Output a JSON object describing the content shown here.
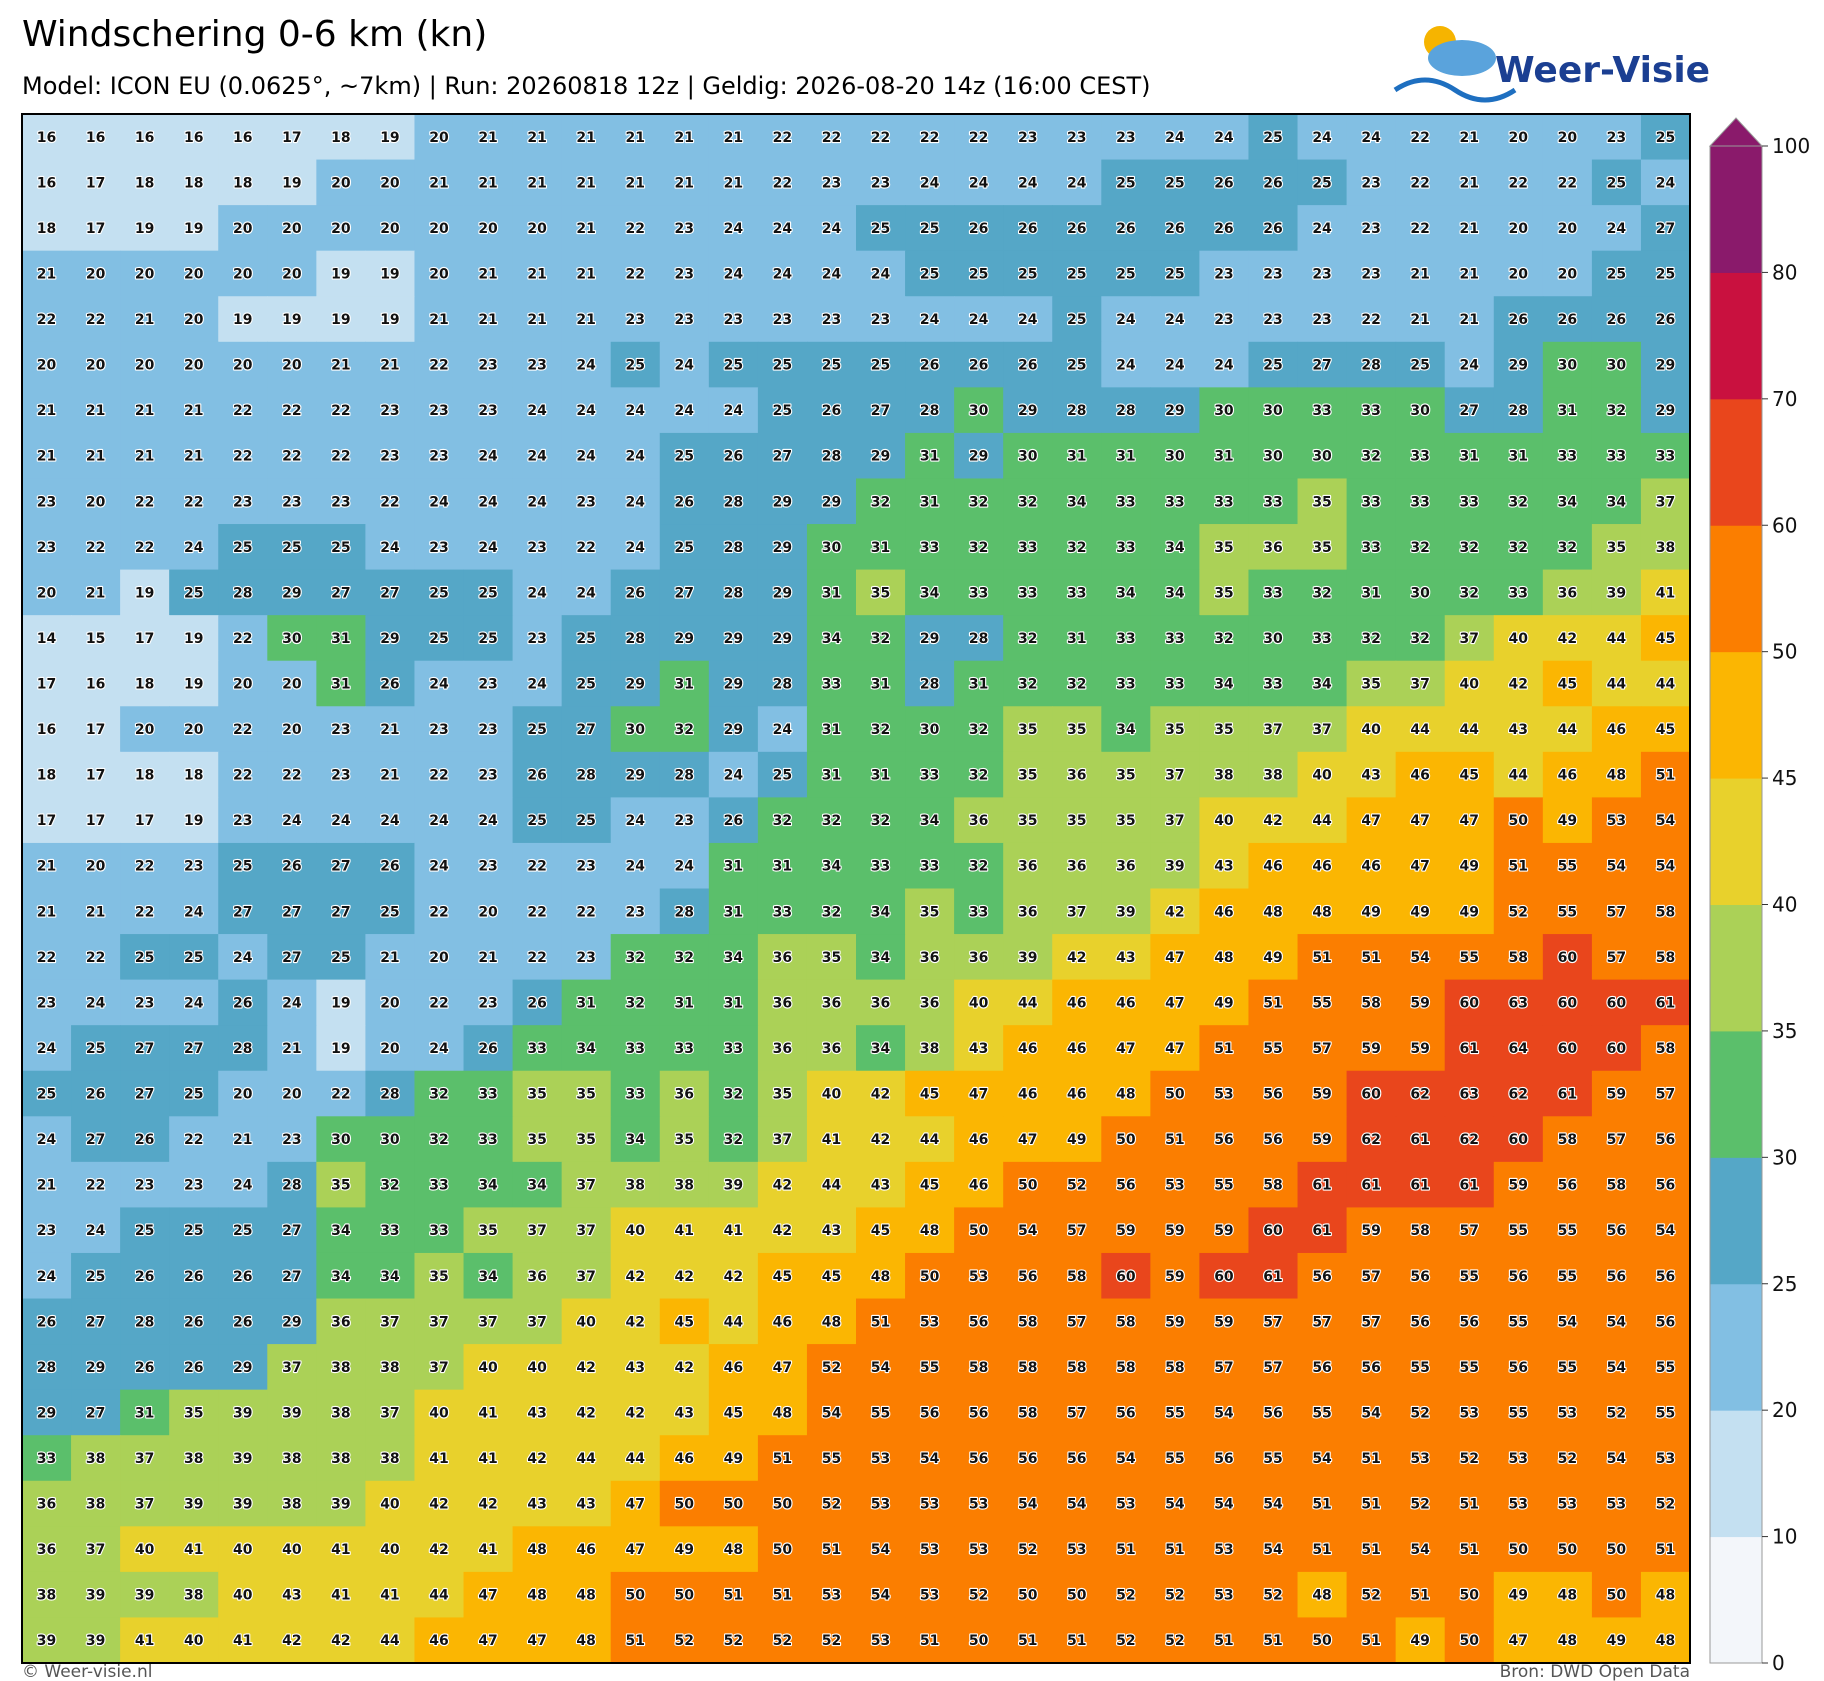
{
  "header": {
    "title": "Windschering 0-6 km (kn)",
    "subtitle": "Model: ICON EU (0.0625°, ~7km)  |  Run: 20260818 12z  |  Geldig: 2026-08-20 14z (16:00 CEST)",
    "logo": "Weer-Visie"
  },
  "footer": {
    "left": "© Weer-visie.nl",
    "right": "Bron: DWD Open Data"
  },
  "colorbar": {
    "bounds": [
      0,
      10,
      20,
      25,
      30,
      35,
      40,
      45,
      50,
      60,
      70,
      80,
      100
    ],
    "colors": [
      "#f3f6fa",
      "#c4e0f1",
      "#82bfe3",
      "#55a7c7",
      "#5bbf6b",
      "#abd157",
      "#e8d12c",
      "#fbb602",
      "#fb7e00",
      "#e9461c",
      "#c9113f",
      "#8a1a6b"
    ]
  },
  "grid": {
    "rows": [
      [
        16,
        16,
        16,
        16,
        16,
        17,
        18,
        19,
        20,
        21,
        21,
        21,
        21,
        21,
        21,
        22,
        22,
        22,
        22,
        22,
        23,
        23,
        23,
        24,
        24,
        25,
        24,
        24,
        22,
        21,
        20,
        20,
        23,
        25
      ],
      [
        16,
        17,
        18,
        18,
        18,
        19,
        20,
        20,
        21,
        21,
        21,
        21,
        21,
        21,
        21,
        22,
        23,
        23,
        24,
        24,
        24,
        24,
        25,
        25,
        26,
        26,
        25,
        23,
        22,
        21,
        22,
        22,
        25,
        24
      ],
      [
        18,
        17,
        19,
        19,
        20,
        20,
        20,
        20,
        20,
        20,
        20,
        21,
        22,
        23,
        24,
        24,
        24,
        25,
        25,
        26,
        26,
        26,
        26,
        26,
        26,
        26,
        24,
        23,
        22,
        21,
        20,
        20,
        24,
        27
      ],
      [
        21,
        20,
        20,
        20,
        20,
        20,
        19,
        19,
        20,
        21,
        21,
        21,
        22,
        23,
        24,
        24,
        24,
        24,
        25,
        25,
        25,
        25,
        25,
        25,
        23,
        23,
        23,
        23,
        21,
        21,
        20,
        20,
        25,
        25
      ],
      [
        22,
        22,
        21,
        20,
        19,
        19,
        19,
        19,
        21,
        21,
        21,
        21,
        23,
        23,
        23,
        23,
        23,
        23,
        24,
        24,
        24,
        25,
        24,
        24,
        23,
        23,
        23,
        22,
        21,
        21,
        26,
        26,
        26,
        26
      ],
      [
        20,
        20,
        20,
        20,
        20,
        20,
        21,
        21,
        22,
        23,
        23,
        24,
        25,
        24,
        25,
        25,
        25,
        25,
        26,
        26,
        26,
        25,
        24,
        24,
        24,
        25,
        27,
        28,
        25,
        24,
        29,
        30,
        30,
        29
      ],
      [
        21,
        21,
        21,
        21,
        22,
        22,
        22,
        23,
        23,
        23,
        24,
        24,
        24,
        24,
        24,
        25,
        26,
        27,
        28,
        30,
        29,
        28,
        28,
        29,
        30,
        30,
        33,
        33,
        30,
        27,
        28,
        31,
        32,
        29
      ],
      [
        21,
        21,
        21,
        21,
        22,
        22,
        22,
        23,
        23,
        24,
        24,
        24,
        24,
        25,
        26,
        27,
        28,
        29,
        31,
        29,
        30,
        31,
        31,
        30,
        31,
        30,
        30,
        32,
        33,
        31,
        31,
        33,
        33,
        33
      ],
      [
        23,
        20,
        22,
        22,
        23,
        23,
        23,
        22,
        24,
        24,
        24,
        23,
        24,
        26,
        28,
        29,
        29,
        32,
        31,
        32,
        32,
        34,
        33,
        33,
        33,
        33,
        35,
        33,
        33,
        33,
        32,
        34,
        34,
        37
      ],
      [
        23,
        22,
        22,
        24,
        25,
        25,
        25,
        24,
        23,
        24,
        23,
        22,
        24,
        25,
        28,
        29,
        30,
        31,
        33,
        32,
        33,
        32,
        33,
        34,
        35,
        36,
        35,
        33,
        32,
        32,
        32,
        32,
        35,
        38
      ],
      [
        20,
        21,
        19,
        25,
        28,
        29,
        27,
        27,
        25,
        25,
        24,
        24,
        26,
        27,
        28,
        29,
        31,
        35,
        34,
        33,
        33,
        33,
        34,
        34,
        35,
        33,
        32,
        31,
        30,
        32,
        33,
        36,
        39,
        41
      ],
      [
        14,
        15,
        17,
        19,
        22,
        30,
        31,
        29,
        25,
        25,
        23,
        25,
        28,
        29,
        29,
        29,
        34,
        32,
        29,
        28,
        32,
        31,
        33,
        33,
        32,
        30,
        33,
        32,
        32,
        37,
        40,
        42,
        44,
        45
      ],
      [
        17,
        16,
        18,
        19,
        20,
        20,
        31,
        26,
        24,
        23,
        24,
        25,
        29,
        31,
        29,
        28,
        33,
        31,
        28,
        31,
        32,
        32,
        33,
        33,
        34,
        33,
        34,
        35,
        37,
        40,
        42,
        45,
        44,
        44
      ],
      [
        16,
        17,
        20,
        20,
        22,
        20,
        23,
        21,
        23,
        23,
        25,
        27,
        30,
        32,
        29,
        24,
        31,
        32,
        30,
        32,
        35,
        35,
        34,
        35,
        35,
        37,
        37,
        40,
        44,
        44,
        43,
        44,
        46,
        45
      ],
      [
        18,
        17,
        18,
        18,
        22,
        22,
        23,
        21,
        22,
        23,
        26,
        28,
        29,
        28,
        24,
        25,
        31,
        31,
        33,
        32,
        35,
        36,
        35,
        37,
        38,
        38,
        40,
        43,
        46,
        45,
        44,
        46,
        48,
        51
      ],
      [
        17,
        17,
        17,
        19,
        23,
        24,
        24,
        24,
        24,
        24,
        25,
        25,
        24,
        23,
        26,
        32,
        32,
        32,
        34,
        36,
        35,
        35,
        35,
        37,
        40,
        42,
        44,
        47,
        47,
        47,
        50,
        49,
        53,
        54
      ],
      [
        21,
        20,
        22,
        23,
        25,
        26,
        27,
        26,
        24,
        23,
        22,
        23,
        24,
        24,
        31,
        31,
        34,
        33,
        33,
        32,
        36,
        36,
        36,
        39,
        43,
        46,
        46,
        46,
        47,
        49,
        51,
        55,
        54,
        54
      ],
      [
        21,
        21,
        22,
        24,
        27,
        27,
        27,
        25,
        22,
        20,
        22,
        22,
        23,
        28,
        31,
        33,
        32,
        34,
        35,
        33,
        36,
        37,
        39,
        42,
        46,
        48,
        48,
        49,
        49,
        49,
        52,
        55,
        57,
        58
      ],
      [
        22,
        22,
        25,
        25,
        24,
        27,
        25,
        21,
        20,
        21,
        22,
        23,
        32,
        32,
        34,
        36,
        35,
        34,
        36,
        36,
        39,
        42,
        43,
        47,
        48,
        49,
        51,
        51,
        54,
        55,
        58,
        60,
        57,
        58
      ],
      [
        23,
        24,
        23,
        24,
        26,
        24,
        19,
        20,
        22,
        23,
        26,
        31,
        32,
        31,
        31,
        36,
        36,
        36,
        36,
        40,
        44,
        46,
        46,
        47,
        49,
        51,
        55,
        58,
        59,
        60,
        63,
        60,
        60,
        61
      ],
      [
        24,
        25,
        27,
        27,
        28,
        21,
        19,
        20,
        24,
        26,
        33,
        34,
        33,
        33,
        33,
        36,
        36,
        34,
        38,
        43,
        46,
        46,
        47,
        47,
        51,
        55,
        57,
        59,
        59,
        61,
        64,
        60,
        60,
        58
      ],
      [
        25,
        26,
        27,
        25,
        20,
        20,
        22,
        28,
        32,
        33,
        35,
        35,
        33,
        36,
        32,
        35,
        40,
        42,
        45,
        47,
        46,
        46,
        48,
        50,
        53,
        56,
        59,
        60,
        62,
        63,
        62,
        61,
        59,
        57
      ],
      [
        24,
        27,
        26,
        22,
        21,
        23,
        30,
        30,
        32,
        33,
        35,
        35,
        34,
        35,
        32,
        37,
        41,
        42,
        44,
        46,
        47,
        49,
        50,
        51,
        56,
        56,
        59,
        62,
        61,
        62,
        60,
        58,
        57,
        56
      ],
      [
        21,
        22,
        23,
        23,
        24,
        28,
        35,
        32,
        33,
        34,
        34,
        37,
        38,
        38,
        39,
        42,
        44,
        43,
        45,
        46,
        50,
        52,
        56,
        53,
        55,
        58,
        61,
        61,
        61,
        61,
        59,
        56,
        58,
        56
      ],
      [
        23,
        24,
        25,
        25,
        25,
        27,
        34,
        33,
        33,
        35,
        37,
        37,
        40,
        41,
        41,
        42,
        43,
        45,
        48,
        50,
        54,
        57,
        59,
        59,
        59,
        60,
        61,
        59,
        58,
        57,
        55,
        55,
        56,
        54
      ],
      [
        24,
        25,
        26,
        26,
        26,
        27,
        34,
        34,
        35,
        34,
        36,
        37,
        42,
        42,
        42,
        45,
        45,
        48,
        50,
        53,
        56,
        58,
        60,
        59,
        60,
        61,
        56,
        57,
        56,
        55,
        56,
        55,
        56,
        56
      ],
      [
        26,
        27,
        28,
        26,
        26,
        29,
        36,
        37,
        37,
        37,
        37,
        40,
        42,
        45,
        44,
        46,
        48,
        51,
        53,
        56,
        58,
        57,
        58,
        59,
        59,
        57,
        57,
        57,
        56,
        56,
        55,
        54,
        54,
        56
      ],
      [
        28,
        29,
        26,
        26,
        29,
        37,
        38,
        38,
        37,
        40,
        40,
        42,
        43,
        42,
        46,
        47,
        52,
        54,
        55,
        58,
        58,
        58,
        58,
        58,
        57,
        57,
        56,
        56,
        55,
        55,
        56,
        55,
        54,
        55
      ],
      [
        29,
        27,
        31,
        35,
        39,
        39,
        38,
        37,
        40,
        41,
        43,
        42,
        42,
        43,
        45,
        48,
        54,
        55,
        56,
        56,
        58,
        57,
        56,
        55,
        54,
        56,
        55,
        54,
        52,
        53,
        55,
        53,
        52,
        55
      ],
      [
        33,
        38,
        37,
        38,
        39,
        38,
        38,
        38,
        41,
        41,
        42,
        44,
        44,
        46,
        49,
        51,
        55,
        53,
        54,
        56,
        56,
        56,
        54,
        55,
        56,
        55,
        54,
        51,
        53,
        52,
        53,
        52,
        54,
        53
      ],
      [
        36,
        38,
        37,
        39,
        39,
        38,
        39,
        40,
        42,
        42,
        43,
        43,
        47,
        50,
        50,
        50,
        52,
        53,
        53,
        53,
        54,
        54,
        53,
        54,
        54,
        54,
        51,
        51,
        52,
        51,
        53,
        53,
        53,
        52
      ],
      [
        36,
        37,
        40,
        41,
        40,
        40,
        41,
        40,
        42,
        41,
        48,
        46,
        47,
        49,
        48,
        50,
        51,
        54,
        53,
        53,
        52,
        53,
        51,
        51,
        53,
        54,
        51,
        51,
        54,
        51,
        50,
        50,
        50,
        51
      ],
      [
        38,
        39,
        39,
        38,
        40,
        43,
        41,
        41,
        44,
        47,
        48,
        48,
        50,
        50,
        51,
        51,
        53,
        54,
        53,
        52,
        50,
        50,
        52,
        52,
        53,
        52,
        48,
        52,
        51,
        50,
        49,
        48,
        50,
        48
      ],
      [
        39,
        39,
        41,
        40,
        41,
        42,
        42,
        44,
        46,
        47,
        47,
        48,
        51,
        52,
        52,
        52,
        52,
        53,
        51,
        50,
        51,
        51,
        52,
        52,
        51,
        51,
        50,
        51,
        49,
        50,
        47,
        48,
        49,
        48
      ]
    ]
  }
}
